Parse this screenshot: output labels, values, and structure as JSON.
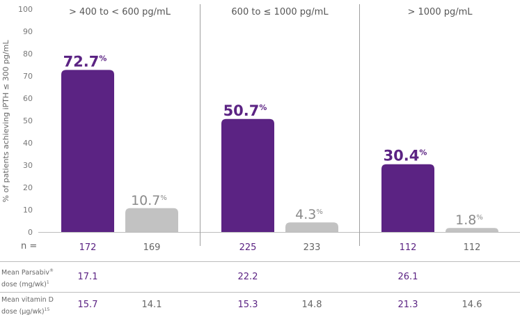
{
  "chart_data": {
    "type": "bar",
    "ylabel": "% of patients achieving iPTH ≤ 300 pg/mL",
    "ylim": [
      0,
      100
    ],
    "yticks": [
      "0",
      "10",
      "20",
      "30",
      "40",
      "50",
      "60",
      "70",
      "80",
      "90",
      "100"
    ],
    "groups": [
      "> 400 to < 600 pg/mL",
      "600 to ≤ 1000 pg/mL",
      "> 1000 pg/mL"
    ],
    "series": [
      {
        "values": [
          72.7,
          50.7,
          30.4
        ],
        "labels": [
          "72.7",
          "50.7",
          "30.4"
        ],
        "color": "#5b2383"
      },
      {
        "values": [
          10.7,
          4.3,
          1.8
        ],
        "labels": [
          "10.7",
          "4.3",
          "1.8"
        ],
        "color": "#c2c2c2"
      }
    ],
    "percent_sign": "%",
    "grid": false
  },
  "table": {
    "n_label": "n =",
    "n_values": [
      [
        "172",
        "169"
      ],
      [
        "225",
        "233"
      ],
      [
        "112",
        "112"
      ]
    ],
    "dose_label_line1": "Mean Parsabiv",
    "dose_label_reg": "®",
    "dose_label_line2": "dose (mg/wk)",
    "dose_label_sup": "1",
    "dose_values": [
      "17.1",
      "22.2",
      "26.1"
    ],
    "vitd_label_line1": "Mean vitamin D",
    "vitd_label_line2": "dose (μg/wk)",
    "vitd_label_sup": "15",
    "vitd_values": [
      [
        "15.7",
        "14.1"
      ],
      [
        "15.3",
        "14.8"
      ],
      [
        "21.3",
        "14.6"
      ]
    ]
  },
  "colors": {
    "parsabiv": "#5b2383",
    "control": "#c2c2c2",
    "divider": "#9e9e9e",
    "axis": "#bdbdbd"
  }
}
